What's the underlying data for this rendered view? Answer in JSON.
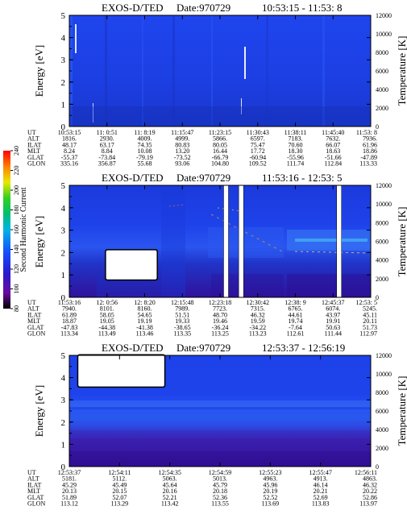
{
  "panels": [
    {
      "title": "EXOS-D/TED",
      "date": "Date:970729",
      "time_range": "10:53:15 - 11:53: 8",
      "chart_data": {
        "type": "heatmap",
        "title": "EXOS-D/TED",
        "xlabel": "UT",
        "ylabel": "Energy [eV]",
        "y2label": "Temperature [K]",
        "ylim": [
          0,
          5
        ],
        "y_ticks": [
          "0",
          "1",
          "2",
          "3",
          "4",
          "5"
        ],
        "y2lim": [
          0,
          12000
        ],
        "y2_ticks": [
          "0",
          "2000",
          "4000",
          "6000",
          "8000",
          "10000",
          "12000"
        ],
        "gaps": [],
        "data_gap_block": null,
        "orbit": {
          "labels": [
            "UT",
            "ALT",
            "ILAT",
            "MLT",
            "GLAT",
            "GLON"
          ],
          "columns": [
            [
              "10:53:15",
              "1816.",
              "48.17",
              "8.24",
              "-55.37",
              "335.16"
            ],
            [
              "11: 0:51",
              "2930.",
              "63.17",
              "8.84",
              "-73.84",
              "356.87"
            ],
            [
              "11: 8:19",
              "4009.",
              "74.35",
              "10.08",
              "-79.19",
              "55.68"
            ],
            [
              "11:15:47",
              "4999.",
              "80.83",
              "13.20",
              "-73.52",
              "93.06"
            ],
            [
              "11:23:15",
              "5866.",
              "80.05",
              "16.44",
              "-66.79",
              "104.80"
            ],
            [
              "11:30:43",
              "6597.",
              "75.47",
              "17.72",
              "-60.94",
              "109.52"
            ],
            [
              "11:38:11",
              "7183.",
              "70.60",
              "18.30",
              "-55.96",
              "111.74"
            ],
            [
              "11:45:40",
              "7632.",
              "66.07",
              "18.63",
              "-51.66",
              "112.84"
            ],
            [
              "11:53: 8",
              "7936.",
              "61.96",
              "18.86",
              "-47.89",
              "113.33"
            ]
          ]
        }
      }
    },
    {
      "title": "EXOS-D/TED",
      "date": "Date:970729",
      "time_range": "11:53:16 - 12:53: 5",
      "chart_data": {
        "type": "heatmap",
        "title": "EXOS-D/TED",
        "xlabel": "UT",
        "ylabel": "Energy [eV]",
        "y2label": "Temperature [K]",
        "ylim": [
          0,
          5
        ],
        "y_ticks": [
          "0",
          "1",
          "2",
          "3",
          "4",
          "5"
        ],
        "y2lim": [
          0,
          12000
        ],
        "y2_ticks": [
          "0",
          "2000",
          "4000",
          "6000",
          "8000",
          "10000",
          "12000"
        ],
        "gaps": [
          0.52,
          0.57,
          0.895
        ],
        "data_gap_block": {
          "from": 0.122,
          "to": 0.29,
          "y_from": 0.8,
          "y_to": 2.1
        },
        "orbit": {
          "labels": [
            "UT",
            "ALT",
            "ILAT",
            "MLT",
            "GLAT",
            "GLON"
          ],
          "columns": [
            [
              "11:53:16",
              "7940.",
              "61.89",
              "18.87",
              "-47.83",
              "113.34"
            ],
            [
              "12: 0:56",
              "8101.",
              "58.05",
              "19.05",
              "-44.38",
              "113.49"
            ],
            [
              "12: 8:20",
              "8160.",
              "54.65",
              "19.19",
              "-41.38",
              "113.46"
            ],
            [
              "12:15:48",
              "7989.",
              "51.51",
              "19.33",
              "-38.65",
              "113.35"
            ],
            [
              "12:23:18",
              "7723.",
              "48.70",
              "19.46",
              "-36.24",
              "113.25"
            ],
            [
              "12:30:42",
              "7315.",
              "46.32",
              "19.59",
              "-34.22",
              "113.23"
            ],
            [
              "12:38: 9",
              "6765.",
              "44.61",
              "19.74",
              "-7.64",
              "112.61"
            ],
            [
              "12:45:37",
              "6074.",
              "43.97",
              "19.91",
              "50.63",
              "111.44"
            ],
            [
              "12:53: 5",
              "5245.",
              "45.11",
              "20.11",
              "51.73",
              "112.97"
            ]
          ]
        }
      }
    },
    {
      "title": "EXOS-D/TED",
      "date": "Date:970729",
      "time_range": "12:53:37 - 12:56:19",
      "chart_data": {
        "type": "heatmap",
        "title": "EXOS-D/TED",
        "xlabel": "UT",
        "ylabel": "Energy [eV]",
        "y2label": "Temperature [K]",
        "ylim": [
          0,
          5
        ],
        "y_ticks": [
          "0",
          "1",
          "2",
          "3",
          "4",
          "5"
        ],
        "y2lim": [
          0,
          12000
        ],
        "y2_ticks": [
          "0",
          "2000",
          "4000",
          "6000",
          "8000",
          "10000",
          "12000"
        ],
        "gaps": [],
        "data_gap_block": {
          "from": 0.03,
          "to": 0.315,
          "y_from": 3.6,
          "y_to": 5
        },
        "orbit": {
          "labels": [
            "UT",
            "ALT",
            "ILAT",
            "MLT",
            "GLAT",
            "GLON"
          ],
          "columns": [
            [
              "12:53:37",
              "5181.",
              "45.29",
              "20.13",
              "51.89",
              "113.12"
            ],
            [
              "12:54:11",
              "5112.",
              "45.49",
              "20.15",
              "52.07",
              "113.29"
            ],
            [
              "12:54:35",
              "5063.",
              "45.64",
              "20.16",
              "52.21",
              "113.42"
            ],
            [
              "12:54:59",
              "5013.",
              "45.79",
              "20.18",
              "52.36",
              "113.55"
            ],
            [
              "12:55:23",
              "4963.",
              "45.96",
              "20.19",
              "52.52",
              "113.69"
            ],
            [
              "12:55:47",
              "4913.",
              "46.14",
              "20.21",
              "52.69",
              "113.83"
            ],
            [
              "12:56:11",
              "4863.",
              "46.32",
              "20.22",
              "52.86",
              "113.97"
            ]
          ]
        }
      }
    }
  ],
  "colorbar": {
    "label": "Second Harmonic Current",
    "ticks": [
      "80",
      "100",
      "120",
      "140",
      "160",
      "180",
      "200",
      "220",
      "240"
    ],
    "range": [
      80,
      240
    ],
    "colors": [
      "#000000",
      "#6a0aa0",
      "#2a1acc",
      "#1550ff",
      "#00b4e6",
      "#00c070",
      "#30d020",
      "#e8e800",
      "#ff8000",
      "#ff0000"
    ]
  },
  "colors": {
    "background": "#1e3ee0",
    "low": "#3412a8",
    "gap": "#ffffff"
  }
}
